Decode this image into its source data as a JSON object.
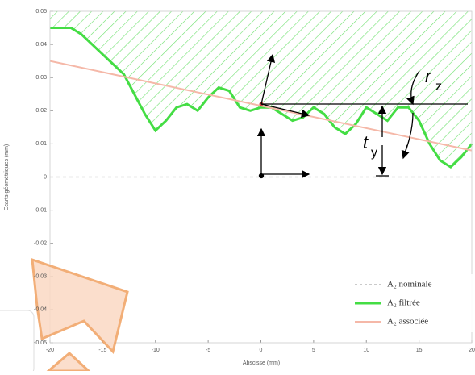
{
  "chart_data": {
    "type": "line",
    "xlabel": "Abscisse (mm)",
    "ylabel": "Ecarts géométriques (mm)",
    "xlim": [
      -20,
      20
    ],
    "xticks": [
      -20,
      -15,
      -10,
      -5,
      0,
      5,
      10,
      15,
      20
    ],
    "ylim": [
      -0.05,
      0.05
    ],
    "yticks": [
      -0.05,
      -0.04,
      -0.03,
      -0.02,
      -0.01,
      0,
      0.01,
      0.02,
      0.03,
      0.04,
      0.05
    ],
    "legend": "lower right",
    "series": [
      {
        "name": "A₂ nominale",
        "color": "#aaaaaa",
        "dash": true,
        "x": [
          -20,
          20
        ],
        "values": [
          0,
          0
        ]
      },
      {
        "name": "A₂ filtrée",
        "color": "#44dd44",
        "hatch": true,
        "x": [
          -20,
          -19,
          -18,
          -17,
          -16,
          -15,
          -14,
          -13,
          -12,
          -11,
          -10,
          -9,
          -8,
          -7,
          -6,
          -5,
          -4,
          -3,
          -2,
          -1,
          0,
          1,
          2,
          3,
          4,
          5,
          6,
          7,
          8,
          9,
          10,
          11,
          12,
          13,
          14,
          15,
          16,
          17,
          18,
          19,
          20
        ],
        "values": [
          0.045,
          0.045,
          0.045,
          0.043,
          0.04,
          0.037,
          0.034,
          0.031,
          0.025,
          0.019,
          0.014,
          0.017,
          0.021,
          0.022,
          0.02,
          0.024,
          0.027,
          0.026,
          0.021,
          0.02,
          0.021,
          0.021,
          0.019,
          0.017,
          0.018,
          0.021,
          0.019,
          0.015,
          0.013,
          0.016,
          0.021,
          0.019,
          0.017,
          0.021,
          0.021,
          0.017,
          0.01,
          0.005,
          0.003,
          0.006,
          0.01
        ]
      },
      {
        "name": "A₂ associée",
        "color": "#f5b8a8",
        "x": [
          -20,
          20
        ],
        "values": [
          0.035,
          0.008
        ]
      }
    ],
    "annotations": [
      {
        "text": "r",
        "sub": "z"
      },
      {
        "text": "t",
        "sub": "y"
      }
    ]
  }
}
